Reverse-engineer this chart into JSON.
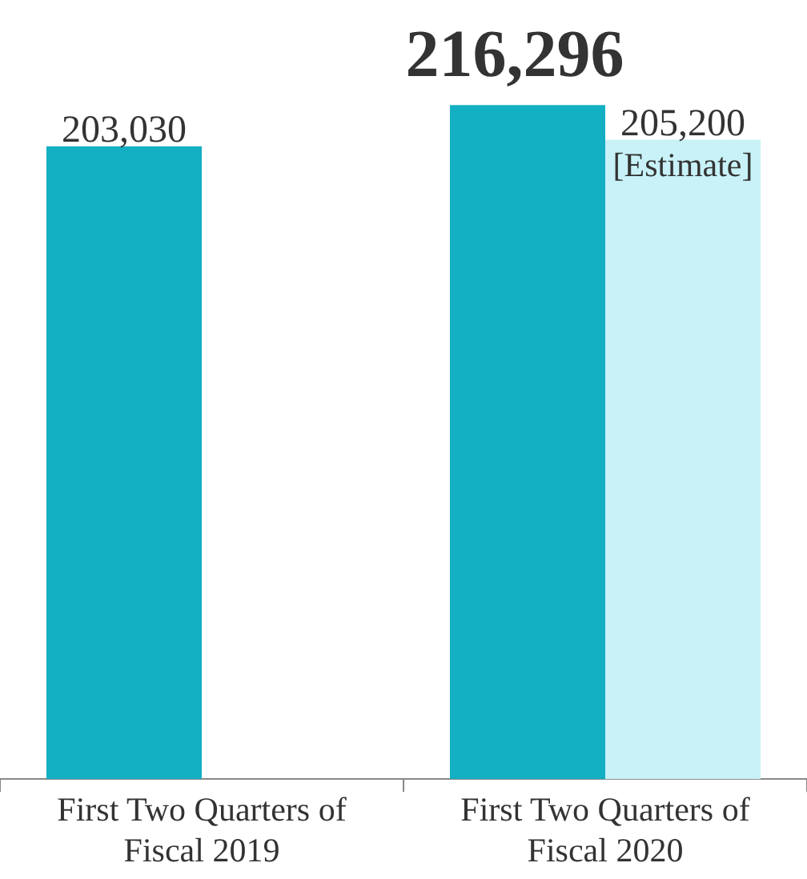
{
  "chart_data": {
    "type": "bar",
    "categories": [
      "First Two Quarters of Fiscal 2019",
      "First Two Quarters of Fiscal 2020"
    ],
    "series": [
      {
        "color": "#13afc3",
        "values": [
          203030,
          216296
        ],
        "value_labels": [
          "203,030",
          "216,296"
        ]
      },
      {
        "color": "#c8f2f7",
        "values": [
          null,
          205200
        ],
        "value_labels": [
          null,
          "205,200"
        ]
      }
    ],
    "tick_labels": "x",
    "grid": false,
    "legend": false,
    "annotations": [
      {
        "text": "[Estimate]",
        "x": "First Two Quarters of Fiscal 2020",
        "y": 205200
      }
    ]
  }
}
